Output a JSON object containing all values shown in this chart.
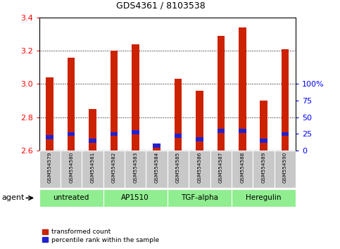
{
  "title": "GDS4361 / 8103538",
  "samples": [
    "GSM554579",
    "GSM554580",
    "GSM554581",
    "GSM554582",
    "GSM554583",
    "GSM554584",
    "GSM554585",
    "GSM554586",
    "GSM554587",
    "GSM554588",
    "GSM554589",
    "GSM554590"
  ],
  "red_values": [
    3.04,
    3.16,
    2.85,
    3.2,
    3.24,
    2.64,
    3.03,
    2.96,
    3.29,
    3.34,
    2.9,
    3.21
  ],
  "blue_values": [
    2.68,
    2.7,
    2.66,
    2.7,
    2.71,
    2.63,
    2.69,
    2.67,
    2.72,
    2.72,
    2.66,
    2.7
  ],
  "blue_thickness": [
    0.025,
    0.025,
    0.025,
    0.025,
    0.025,
    0.025,
    0.025,
    0.025,
    0.025,
    0.025,
    0.025,
    0.025
  ],
  "base": 2.6,
  "ylim": [
    2.6,
    3.4
  ],
  "y2_ticks": [
    0,
    25,
    50,
    75,
    100
  ],
  "yticks": [
    2.6,
    2.8,
    3.0,
    3.2,
    3.4
  ],
  "groups": [
    {
      "label": "untreated",
      "start": 0,
      "end": 3
    },
    {
      "label": "AP1510",
      "start": 3,
      "end": 6
    },
    {
      "label": "TGF-alpha",
      "start": 6,
      "end": 9
    },
    {
      "label": "Heregulin",
      "start": 9,
      "end": 12
    }
  ],
  "bar_color": "#CC2200",
  "blue_color": "#2222CC",
  "green_color": "#90EE90",
  "grey_color": "#C8C8C8",
  "legend_red": "transformed count",
  "legend_blue": "percentile rank within the sample",
  "bar_width": 0.35
}
